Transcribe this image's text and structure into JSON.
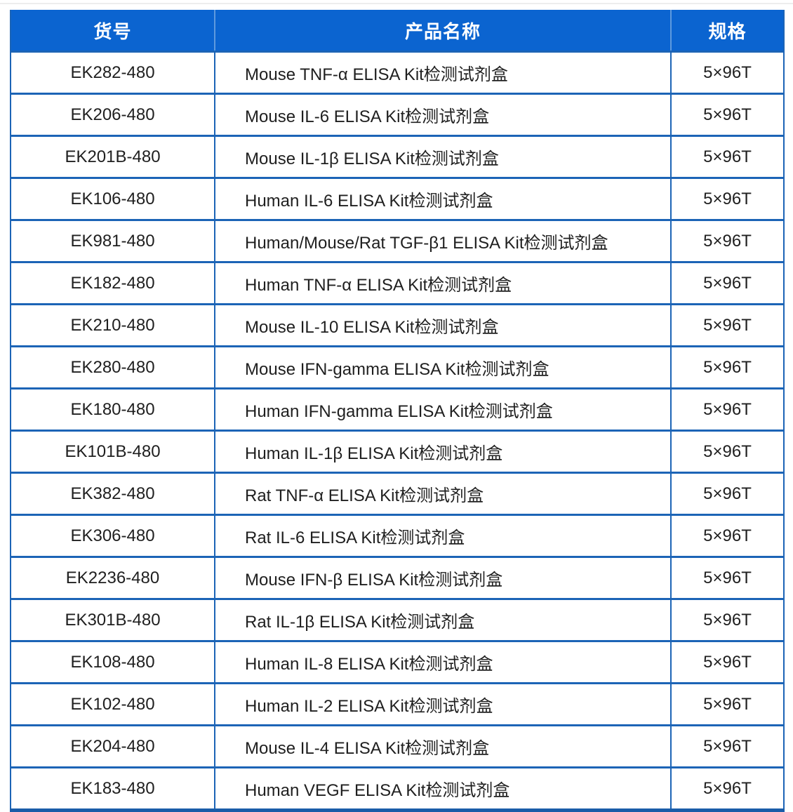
{
  "table": {
    "columns": [
      {
        "key": "code",
        "label": "货号"
      },
      {
        "key": "name",
        "label": "产品名称"
      },
      {
        "key": "spec",
        "label": "规格"
      }
    ],
    "rows": [
      {
        "code": "EK282-480",
        "name": "Mouse TNF-α ELISA Kit检测试剂盒",
        "spec": "5×96T"
      },
      {
        "code": "EK206-480",
        "name": "Mouse IL-6 ELISA Kit检测试剂盒",
        "spec": "5×96T"
      },
      {
        "code": "EK201B-480",
        "name": "Mouse IL-1β ELISA Kit检测试剂盒",
        "spec": "5×96T"
      },
      {
        "code": "EK106-480",
        "name": "Human IL-6 ELISA Kit检测试剂盒",
        "spec": "5×96T"
      },
      {
        "code": "EK981-480",
        "name": "Human/Mouse/Rat TGF-β1 ELISA Kit检测试剂盒",
        "spec": "5×96T"
      },
      {
        "code": "EK182-480",
        "name": "Human TNF-α ELISA Kit检测试剂盒",
        "spec": "5×96T"
      },
      {
        "code": "EK210-480",
        "name": "Mouse IL-10 ELISA Kit检测试剂盒",
        "spec": "5×96T"
      },
      {
        "code": "EK280-480",
        "name": "Mouse IFN-gamma ELISA Kit检测试剂盒",
        "spec": "5×96T"
      },
      {
        "code": "EK180-480",
        "name": "Human IFN-gamma ELISA Kit检测试剂盒",
        "spec": "5×96T"
      },
      {
        "code": "EK101B-480",
        "name": "Human IL-1β ELISA Kit检测试剂盒",
        "spec": "5×96T"
      },
      {
        "code": "EK382-480",
        "name": "Rat TNF-α ELISA Kit检测试剂盒",
        "spec": "5×96T"
      },
      {
        "code": "EK306-480",
        "name": "Rat IL-6 ELISA Kit检测试剂盒",
        "spec": "5×96T"
      },
      {
        "code": "EK2236-480",
        "name": "Mouse IFN-β ELISA Kit检测试剂盒",
        "spec": "5×96T"
      },
      {
        "code": "EK301B-480",
        "name": "Rat IL-1β ELISA Kit检测试剂盒",
        "spec": "5×96T"
      },
      {
        "code": "EK108-480",
        "name": "Human IL-8 ELISA Kit检测试剂盒",
        "spec": "5×96T"
      },
      {
        "code": "EK102-480",
        "name": "Human IL-2 ELISA Kit检测试剂盒",
        "spec": "5×96T"
      },
      {
        "code": "EK204-480",
        "name": "Mouse IL-4 ELISA Kit检测试剂盒",
        "spec": "5×96T"
      },
      {
        "code": "EK183-480",
        "name": "Human VEGF ELISA Kit检测试剂盒",
        "spec": "5×96T"
      }
    ]
  },
  "colors": {
    "header_bg": "#0b64d0",
    "header_text": "#ffffff",
    "header_divider": "#5e9ade",
    "grid_line": "#1c64b6",
    "bottom_border": "#1a5ca8",
    "body_text": "#1f1f1f"
  }
}
